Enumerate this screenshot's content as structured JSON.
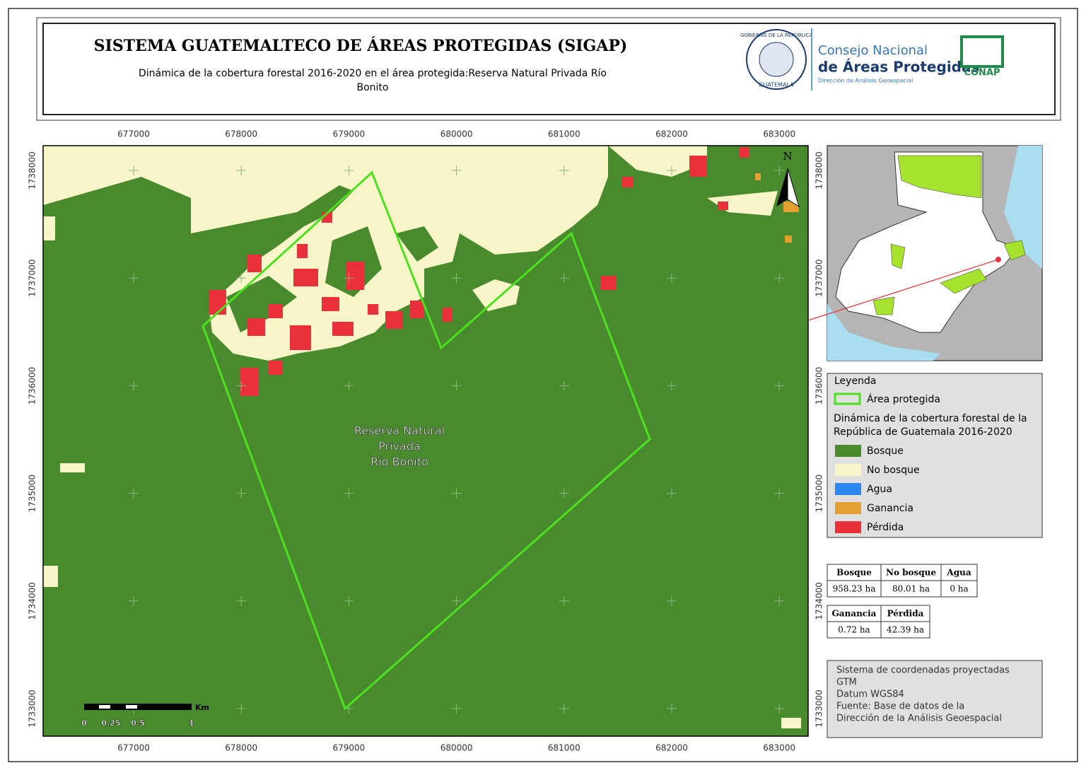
{
  "header": {
    "title": "SISTEMA GUATEMALTECO DE ÁREAS PROTEGIDAS  (SIGAP)",
    "subtitle_lines": [
      "Dinámica de la cobertura forestal 2016-2020 en el área protegida:Reserva Natural Privada Río",
      "Bonito"
    ]
  },
  "logos": {
    "seal_top": "GOBIERNO DE LA REPÚBLICA",
    "seal_bottom": "GUATEMALA",
    "council_line1": "Consejo Nacional",
    "council_line2": "de Áreas Protegidas",
    "council_line3": "Dirección de Análisis Geoespacial",
    "conap": "CONAP"
  },
  "map": {
    "xticks": [
      677000,
      678000,
      679000,
      680000,
      681000,
      682000,
      683000
    ],
    "yticks": [
      1733000,
      1734000,
      1735000,
      1736000,
      1737000,
      1738000
    ],
    "area_label": [
      "Reserva Natural",
      "Privada",
      "Río Bonito"
    ],
    "north": "N",
    "scale": {
      "unit": "Km",
      "labels": [
        "0",
        "0.25",
        "0.5",
        "1"
      ]
    }
  },
  "legend": {
    "title": "Leyenda",
    "protected": "Área protegida",
    "subtitle_lines": [
      "Dinámica de la cobertura forestal de la",
      "República de Guatemala 2016-2020"
    ],
    "items": [
      {
        "label": "Bosque",
        "color": "#4a8a2e"
      },
      {
        "label": "No bosque",
        "color": "#f8f6c8"
      },
      {
        "label": "Agua",
        "color": "#2e86f0"
      },
      {
        "label": "Ganancia",
        "color": "#e5a032"
      },
      {
        "label": "Pérdida",
        "color": "#e8313a"
      }
    ]
  },
  "table1": {
    "header": [
      "Bosque",
      "No bosque",
      "Agua"
    ],
    "row": [
      "958.23 ha",
      "80.01 ha",
      "0 ha"
    ]
  },
  "table2": {
    "header": [
      "Ganancia",
      "Pérdida"
    ],
    "row": [
      "0.72 ha",
      "42.39 ha"
    ]
  },
  "footnote": [
    "Sistema de coordenadas proyectadas",
    "GTM",
    "Datum WGS84",
    "Fuente: Base de datos de la",
    "Dirección de la Análisis Geoespacial"
  ]
}
